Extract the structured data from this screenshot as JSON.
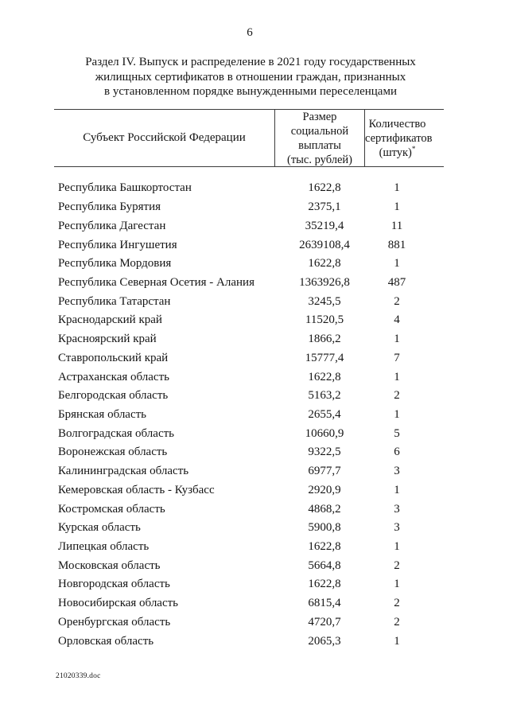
{
  "page": {
    "number": "6",
    "footer": "21020339.doc"
  },
  "document": {
    "title_lines": [
      "Раздел IV. Выпуск и распределение в 2021 году государственных",
      "жилищных сертификатов в отношении граждан, признанных",
      "в установленном порядке вынужденными переселенцами"
    ]
  },
  "table": {
    "columns": [
      {
        "header": "Субъект Российской Федерации"
      },
      {
        "header_lines": [
          "Размер",
          "социальной",
          "выплаты",
          "(тыс. рублей)"
        ]
      },
      {
        "header_lines": [
          "Количество",
          "сертификатов"
        ],
        "header_last": "(штук)",
        "footnote_marker": "*"
      }
    ],
    "rows": [
      {
        "region": "Республика Башкортостан",
        "payment": "1622,8",
        "certificates": "1"
      },
      {
        "region": "Республика Бурятия",
        "payment": "2375,1",
        "certificates": "1"
      },
      {
        "region": "Республика Дагестан",
        "payment": "35219,4",
        "certificates": "11"
      },
      {
        "region": "Республика Ингушетия",
        "payment": "2639108,4",
        "certificates": "881"
      },
      {
        "region": "Республика Мордовия",
        "payment": "1622,8",
        "certificates": "1"
      },
      {
        "region": "Республика Северная Осетия - Алания",
        "payment": "1363926,8",
        "certificates": "487"
      },
      {
        "region": "Республика Татарстан",
        "payment": "3245,5",
        "certificates": "2"
      },
      {
        "region": "Краснодарский край",
        "payment": "11520,5",
        "certificates": "4"
      },
      {
        "region": "Красноярский край",
        "payment": "1866,2",
        "certificates": "1"
      },
      {
        "region": "Ставропольский край",
        "payment": "15777,4",
        "certificates": "7"
      },
      {
        "region": "Астраханская область",
        "payment": "1622,8",
        "certificates": "1"
      },
      {
        "region": "Белгородская область",
        "payment": "5163,2",
        "certificates": "2"
      },
      {
        "region": "Брянская область",
        "payment": "2655,4",
        "certificates": "1"
      },
      {
        "region": "Волгоградская область",
        "payment": "10660,9",
        "certificates": "5"
      },
      {
        "region": "Воронежская область",
        "payment": "9322,5",
        "certificates": "6"
      },
      {
        "region": "Калининградская область",
        "payment": "6977,7",
        "certificates": "3"
      },
      {
        "region": "Кемеровская область - Кузбасс",
        "payment": "2920,9",
        "certificates": "1"
      },
      {
        "region": "Костромская область",
        "payment": "4868,2",
        "certificates": "3"
      },
      {
        "region": "Курская область",
        "payment": "5900,8",
        "certificates": "3"
      },
      {
        "region": "Липецкая область",
        "payment": "1622,8",
        "certificates": "1"
      },
      {
        "region": "Московская область",
        "payment": "5664,8",
        "certificates": "2"
      },
      {
        "region": "Новгородская область",
        "payment": "1622,8",
        "certificates": "1"
      },
      {
        "region": "Новосибирская область",
        "payment": "6815,4",
        "certificates": "2"
      },
      {
        "region": "Оренбургская область",
        "payment": "4720,7",
        "certificates": "2"
      },
      {
        "region": "Орловская область",
        "payment": "2065,3",
        "certificates": "1"
      }
    ]
  }
}
